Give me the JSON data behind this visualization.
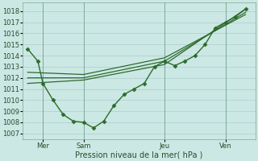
{
  "title": "",
  "xlabel": "Pression niveau de la mer( hPa )",
  "ylabel": "",
  "background_color": "#cce8e4",
  "grid_color": "#aacccc",
  "line_color": "#2d6b2d",
  "ylim": [
    1006.5,
    1018.8
  ],
  "xlim": [
    -0.5,
    22.5
  ],
  "yticks": [
    1007,
    1008,
    1009,
    1010,
    1011,
    1012,
    1013,
    1014,
    1015,
    1016,
    1017,
    1018
  ],
  "xtick_positions": [
    1.5,
    5.5,
    13.5,
    19.5
  ],
  "xtick_labels": [
    "Mer",
    "Sam",
    "Jeu",
    "Ven"
  ],
  "vlines": [
    1.5,
    5.5,
    13.5,
    19.5
  ],
  "series": [
    {
      "x": [
        0,
        1,
        1.5,
        2.5,
        3.5,
        4.5,
        5.5,
        6.5,
        7.5,
        8.5,
        9.5,
        10.5,
        11.5,
        12.5,
        13.5,
        14.5,
        15.5,
        16.5,
        17.5,
        18.5,
        19.5,
        20.5,
        21.5
      ],
      "y": [
        1014.6,
        1013.5,
        1011.5,
        1010.0,
        1008.7,
        1008.1,
        1008.0,
        1007.5,
        1008.1,
        1009.5,
        1010.5,
        1011.0,
        1011.5,
        1013.0,
        1013.5,
        1013.1,
        1013.5,
        1014.0,
        1015.0,
        1016.5,
        1017.0,
        1017.5,
        1018.2
      ],
      "marker": "D",
      "markersize": 2.5,
      "linewidth": 1.0,
      "zorder": 4
    },
    {
      "x": [
        0,
        5.5,
        13.5,
        21.5
      ],
      "y": [
        1011.5,
        1011.8,
        1013.2,
        1018.2
      ],
      "marker": null,
      "markersize": 0,
      "linewidth": 0.9,
      "zorder": 3
    },
    {
      "x": [
        0,
        5.5,
        13.5,
        21.5
      ],
      "y": [
        1012.0,
        1012.0,
        1013.5,
        1017.9
      ],
      "marker": null,
      "markersize": 0,
      "linewidth": 0.9,
      "zorder": 3
    },
    {
      "x": [
        0,
        5.5,
        13.5,
        21.5
      ],
      "y": [
        1012.5,
        1012.3,
        1013.8,
        1017.7
      ],
      "marker": null,
      "markersize": 0,
      "linewidth": 0.9,
      "zorder": 3
    }
  ]
}
